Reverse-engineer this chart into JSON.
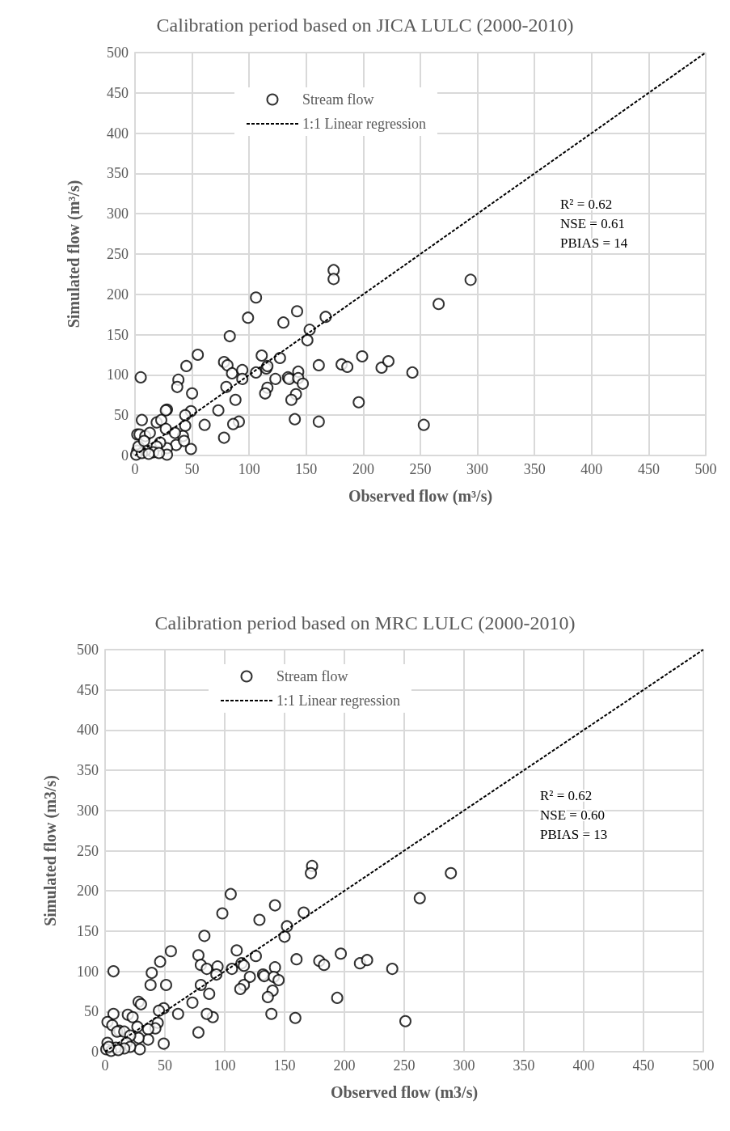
{
  "chart_data": [
    {
      "type": "scatter",
      "title": "Calibration period based on JICA LULC (2000-2010)",
      "xlabel": "Observed flow (m³/s)",
      "ylabel": "Simulated flow (m³/s)",
      "xlim": [
        0,
        500
      ],
      "ylim": [
        0,
        500
      ],
      "xticks": [
        0,
        50,
        100,
        150,
        200,
        250,
        300,
        350,
        400,
        450,
        500
      ],
      "yticks": [
        0,
        50,
        100,
        150,
        200,
        250,
        300,
        350,
        400,
        450,
        500
      ],
      "grid": true,
      "legend": "top",
      "annotations": [
        "R² = 0.62",
        "NSE = 0.61",
        "PBIAS = 14"
      ],
      "series": [
        {
          "name": "Stream flow",
          "type": "scatter",
          "marker": "circle",
          "color": "#000000",
          "x": [
            174,
            174,
            294,
            266,
            106,
            99,
            130,
            142,
            167,
            83,
            153,
            151,
            55,
            111,
            127,
            45,
            5,
            38,
            37,
            50,
            78,
            81,
            85,
            94,
            94,
            106,
            115,
            116,
            123,
            134,
            135,
            143,
            143,
            147,
            116,
            114,
            141,
            137,
            80,
            88,
            161,
            181,
            186,
            199,
            216,
            222,
            243,
            196,
            140,
            161,
            253,
            91,
            86,
            61,
            73,
            78,
            49,
            44,
            44,
            42,
            49,
            28,
            27,
            19,
            23,
            6,
            2,
            4,
            9,
            13,
            27,
            35,
            36,
            43,
            28,
            22,
            19,
            16,
            28,
            21,
            9,
            2,
            1,
            6,
            12,
            3,
            8
          ],
          "values": [
            230,
            219,
            218,
            188,
            196,
            171,
            165,
            179,
            172,
            148,
            156,
            143,
            125,
            124,
            121,
            111,
            97,
            94,
            85,
            77,
            116,
            112,
            102,
            106,
            95,
            103,
            108,
            111,
            95,
            97,
            95,
            104,
            96,
            89,
            84,
            77,
            76,
            69,
            85,
            69,
            112,
            113,
            110,
            123,
            109,
            117,
            103,
            66,
            45,
            42,
            38,
            42,
            39,
            38,
            56,
            22,
            55,
            50,
            37,
            24,
            8,
            57,
            56,
            41,
            44,
            44,
            26,
            26,
            24,
            28,
            33,
            28,
            13,
            18,
            9,
            16,
            11,
            4,
            1,
            3,
            6,
            6,
            1,
            3,
            2,
            11,
            18
          ]
        },
        {
          "name": "1:1 Linear regression",
          "type": "line",
          "line_style": "dashed",
          "color": "#000000",
          "x": [
            0,
            500
          ],
          "values": [
            0,
            500
          ]
        }
      ]
    },
    {
      "type": "scatter",
      "title": "Calibration period based on MRC LULC (2000-2010)",
      "xlabel": "Observed flow (m3/s)",
      "ylabel": "Simulated flow (m3/s)",
      "xlim": [
        0,
        500
      ],
      "ylim": [
        0,
        500
      ],
      "xticks": [
        0,
        50,
        100,
        150,
        200,
        250,
        300,
        350,
        400,
        450,
        500
      ],
      "yticks": [
        0,
        50,
        100,
        150,
        200,
        250,
        300,
        350,
        400,
        450,
        500
      ],
      "grid": true,
      "legend": "top",
      "annotations": [
        "R² = 0.62",
        "NSE = 0.60",
        "PBIAS = 13"
      ],
      "series": [
        {
          "name": "Stream flow",
          "type": "scatter",
          "marker": "circle",
          "color": "#000000",
          "x": [
            173,
            172,
            289,
            263,
            105,
            98,
            129,
            142,
            166,
            83,
            152,
            150,
            55,
            110,
            126,
            46,
            7,
            39,
            38,
            51,
            78,
            80,
            85,
            94,
            93,
            106,
            114,
            116,
            121,
            132,
            133,
            142,
            141,
            145,
            116,
            113,
            140,
            136,
            80,
            87,
            160,
            179,
            183,
            197,
            213,
            219,
            240,
            194,
            139,
            159,
            251,
            90,
            85,
            61,
            73,
            78,
            49,
            45,
            44,
            42,
            49,
            28,
            30,
            19,
            23,
            7,
            2,
            6,
            12,
            10,
            16,
            27,
            36,
            36,
            28,
            21,
            18,
            29,
            21,
            16,
            9,
            2,
            1,
            5,
            11,
            3
          ],
          "values": [
            231,
            222,
            222,
            191,
            196,
            172,
            164,
            182,
            173,
            144,
            156,
            143,
            125,
            126,
            119,
            112,
            100,
            98,
            83,
            83,
            120,
            108,
            103,
            106,
            96,
            103,
            110,
            107,
            93,
            96,
            94,
            105,
            93,
            89,
            83,
            78,
            76,
            68,
            83,
            72,
            115,
            113,
            108,
            122,
            110,
            114,
            103,
            67,
            47,
            42,
            38,
            43,
            47,
            47,
            61,
            24,
            54,
            51,
            36,
            29,
            10,
            62,
            59,
            46,
            43,
            47,
            37,
            33,
            26,
            25,
            25,
            31,
            28,
            15,
            17,
            20,
            11,
            3,
            6,
            4,
            5,
            11,
            3,
            1,
            2,
            6
          ]
        },
        {
          "name": "1:1 Linear regression",
          "type": "line",
          "line_style": "dashed",
          "color": "#000000",
          "x": [
            0,
            500
          ],
          "values": [
            0,
            500
          ]
        }
      ]
    }
  ]
}
